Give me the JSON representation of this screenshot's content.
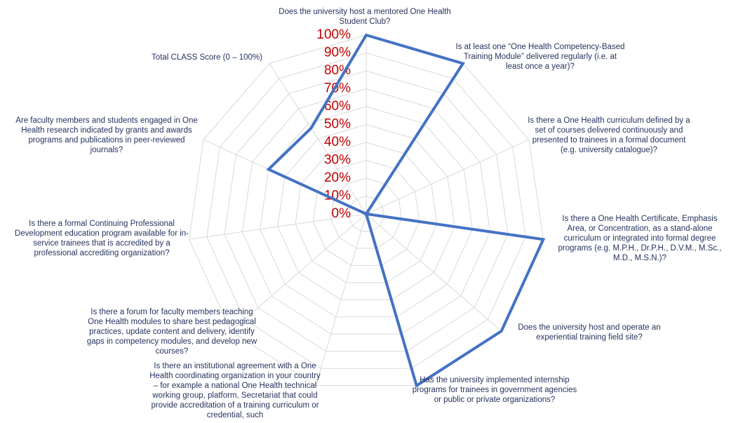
{
  "chart_data": {
    "type": "radar",
    "categories": [
      "Does the university host a mentored One Health Student Club?",
      "Is at least one “One Health Competency-Based Training Module” delivered regularly (i.e. at least once a year)?",
      "Is there a One Health curriculum defined by a set of courses delivered continuously and presented to trainees in a formal document (e.g. university catalogue)?",
      "Is there a One Health Certificate, Emphasis Area, or Concentration, as a stand-alone curriculum or integrated into formal degree programs (e.g. M.P.H., Dr.P.H., D.V.M., M.Sc., M.D., M.S.N.)?",
      "Does the university host and operate an experiential training field site?",
      "Has the university implemented internship programs for trainees in government agencies or public or private organizations?",
      "Is there an institutional agreement with a One Health coordinating organization in your country – for example a national One Health technical working group, platform, Secretariat that could provide accreditation of a training curriculum or credential, such",
      "Is there a forum for faculty members teaching One Health modules to share best pedagogical practices, update content and delivery, identify gaps in competency modules, and develop new courses?",
      "Is there a formal Continuing Professional Development education program available for in-service trainees that is accredited by a professional accrediting organization?",
      "Are faculty members and students engaged in One Health research indicated by grants and awards programs and publications in peer-reviewed journals?",
      "Total CLASS Score (0 – 100%)"
    ],
    "values": [
      100,
      100,
      0,
      100,
      100,
      100,
      0,
      0,
      0,
      60,
      57
    ],
    "color": "#4472c4",
    "ylim": [
      0,
      100
    ],
    "yticks": [
      {
        "value": 0,
        "label": "0%"
      },
      {
        "value": 10,
        "label": "10%"
      },
      {
        "value": 20,
        "label": "20%"
      },
      {
        "value": 30,
        "label": "30%"
      },
      {
        "value": 40,
        "label": "40%"
      },
      {
        "value": 50,
        "label": "50%"
      },
      {
        "value": 60,
        "label": "60%"
      },
      {
        "value": 70,
        "label": "70%"
      },
      {
        "value": 80,
        "label": "80%"
      },
      {
        "value": 90,
        "label": "90%"
      },
      {
        "value": 100,
        "label": "100%"
      }
    ],
    "grid": true
  }
}
